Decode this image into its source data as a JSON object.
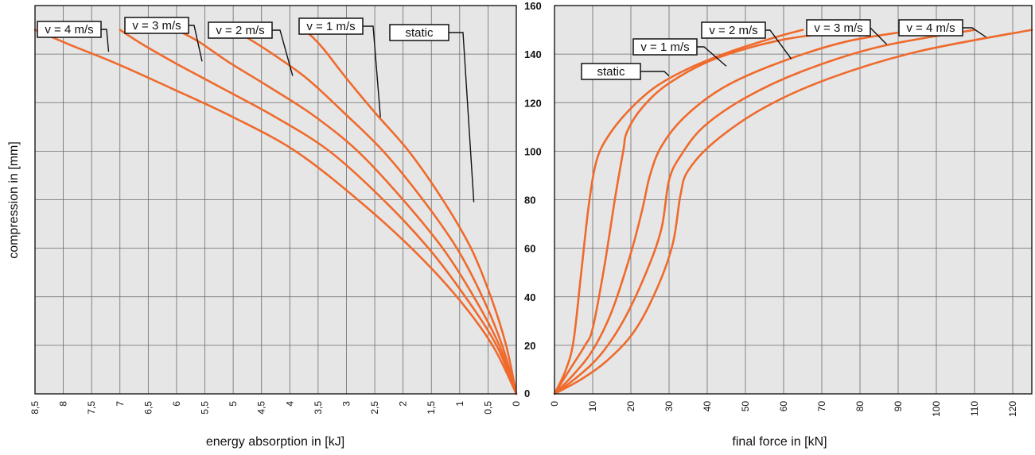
{
  "chart_data": [
    {
      "type": "line",
      "title": "",
      "xlabel": "energy absorption in [kJ]",
      "ylabel": "compression in [mm]",
      "xlim": [
        8.5,
        0
      ],
      "ylim": [
        0,
        160
      ],
      "x_reversed": true,
      "grid": true,
      "x_ticks": [
        "8,5",
        "8",
        "7,5",
        "7",
        "6,5",
        "6",
        "5,5",
        "5",
        "4,5",
        "4",
        "3,5",
        "3",
        "2,5",
        "2",
        "1,5",
        "1",
        "0,5",
        "0"
      ],
      "x_tick_values": [
        8.5,
        8,
        7.5,
        7,
        6.5,
        6,
        5.5,
        5,
        4.5,
        4,
        3.5,
        3,
        2.5,
        2,
        1.5,
        1,
        0.5,
        0
      ],
      "y_ticks": [
        "0",
        "20",
        "40",
        "60",
        "80",
        "100",
        "120",
        "140",
        "160"
      ],
      "series": [
        {
          "name": "static",
          "x": [
            0,
            0.18,
            0.45,
            0.8,
            1.3,
            1.9,
            2.5,
            3.0,
            3.4,
            3.6,
            3.75
          ],
          "y": [
            0,
            20,
            40,
            60,
            80,
            100,
            116,
            130,
            142,
            147,
            150
          ]
        },
        {
          "name": "v = 1 m/s",
          "x": [
            0,
            0.25,
            0.6,
            1.05,
            1.65,
            2.35,
            3.05,
            3.7,
            4.3,
            4.7,
            5.0
          ],
          "y": [
            0,
            20,
            40,
            60,
            80,
            100,
            116,
            130,
            140,
            146,
            150
          ]
        },
        {
          "name": "v = 2 m/s",
          "x": [
            0,
            0.3,
            0.75,
            1.3,
            2.0,
            2.8,
            3.6,
            4.4,
            5.1,
            5.6,
            6.0
          ],
          "y": [
            0,
            20,
            40,
            60,
            80,
            100,
            115,
            127,
            137,
            145,
            150
          ]
        },
        {
          "name": "v = 3 m/s",
          "x": [
            0,
            0.35,
            0.9,
            1.55,
            2.35,
            3.3,
            4.25,
            5.2,
            6.0,
            6.6,
            7.0
          ],
          "y": [
            0,
            20,
            40,
            60,
            80,
            100,
            114,
            126,
            136,
            144,
            150
          ]
        },
        {
          "name": "v = 4 m/s",
          "x": [
            0,
            0.42,
            1.05,
            1.85,
            2.8,
            3.9,
            5.0,
            6.1,
            7.05,
            7.9,
            8.5
          ],
          "y": [
            0,
            20,
            40,
            60,
            80,
            100,
            114,
            126,
            136,
            144,
            150
          ]
        }
      ]
    },
    {
      "type": "line",
      "title": "",
      "xlabel": "final force in [kN]",
      "ylabel": "",
      "xlim": [
        0,
        125
      ],
      "ylim": [
        0,
        160
      ],
      "grid": true,
      "x_ticks": [
        "0",
        "10",
        "20",
        "30",
        "40",
        "50",
        "60",
        "70",
        "80",
        "90",
        "100",
        "110",
        "120"
      ],
      "x_tick_values": [
        0,
        10,
        20,
        30,
        40,
        50,
        60,
        70,
        80,
        90,
        100,
        110,
        120
      ],
      "y_ticks": [
        "0",
        "20",
        "40",
        "60",
        "80",
        "100",
        "120",
        "140",
        "160"
      ],
      "series": [
        {
          "name": "static",
          "x": [
            0,
            3,
            5,
            7,
            9,
            11,
            14,
            19,
            26,
            35,
            46,
            58,
            65
          ],
          "y": [
            0,
            10,
            22,
            50,
            78,
            96,
            106,
            116,
            126,
            134,
            141,
            147,
            150
          ]
        },
        {
          "name": "v = 1 m/s",
          "x": [
            0,
            4,
            8,
            10,
            13,
            16,
            18,
            19,
            23,
            30,
            42,
            60,
            80
          ],
          "y": [
            0,
            10,
            20,
            27,
            52,
            82,
            100,
            108,
            118,
            128,
            138,
            146,
            150
          ]
        },
        {
          "name": "v = 2 m/s",
          "x": [
            0,
            5,
            10,
            15,
            20,
            23,
            25,
            28,
            34,
            44,
            58,
            76,
            95
          ],
          "y": [
            0,
            8,
            18,
            34,
            58,
            76,
            90,
            102,
            114,
            126,
            136,
            145,
            150
          ]
        },
        {
          "name": "v = 3 m/s",
          "x": [
            0,
            6,
            12,
            18,
            24,
            28,
            30,
            33,
            39,
            50,
            65,
            85,
            110
          ],
          "y": [
            0,
            7,
            16,
            30,
            50,
            68,
            88,
            98,
            110,
            122,
            133,
            143,
            150
          ]
        },
        {
          "name": "v = 4 m/s",
          "x": [
            0,
            7,
            14,
            21,
            27,
            31,
            33,
            35,
            42,
            55,
            72,
            95,
            125
          ],
          "y": [
            0,
            6,
            14,
            26,
            44,
            62,
            82,
            92,
            104,
            118,
            130,
            141,
            150
          ]
        }
      ]
    }
  ],
  "labels": {
    "left": [
      {
        "text": "v = 4 m/s",
        "series": "v = 4 m/s",
        "ax": 7.2,
        "ay": 141
      },
      {
        "text": "v = 3 m/s",
        "series": "v = 3 m/s",
        "ax": 5.55,
        "ay": 137
      },
      {
        "text": "v = 2 m/s",
        "series": "v = 2 m/s",
        "ax": 3.95,
        "ay": 131
      },
      {
        "text": "v = 1 m/s",
        "series": "v = 1 m/s",
        "ax": 2.4,
        "ay": 114
      },
      {
        "text": "static",
        "series": "static",
        "ax": 0.75,
        "ay": 79
      }
    ],
    "right": [
      {
        "text": "static",
        "series": "static",
        "ax": 30,
        "ay": 131
      },
      {
        "text": "v = 1 m/s",
        "series": "v = 1 m/s",
        "ax": 45,
        "ay": 135
      },
      {
        "text": "v = 2 m/s",
        "series": "v = 2 m/s",
        "ax": 62,
        "ay": 138
      },
      {
        "text": "v = 3 m/s",
        "series": "v = 3 m/s",
        "ax": 87,
        "ay": 144
      },
      {
        "text": "v = 4 m/s",
        "series": "v = 4 m/s",
        "ax": 113,
        "ay": 147
      }
    ]
  }
}
